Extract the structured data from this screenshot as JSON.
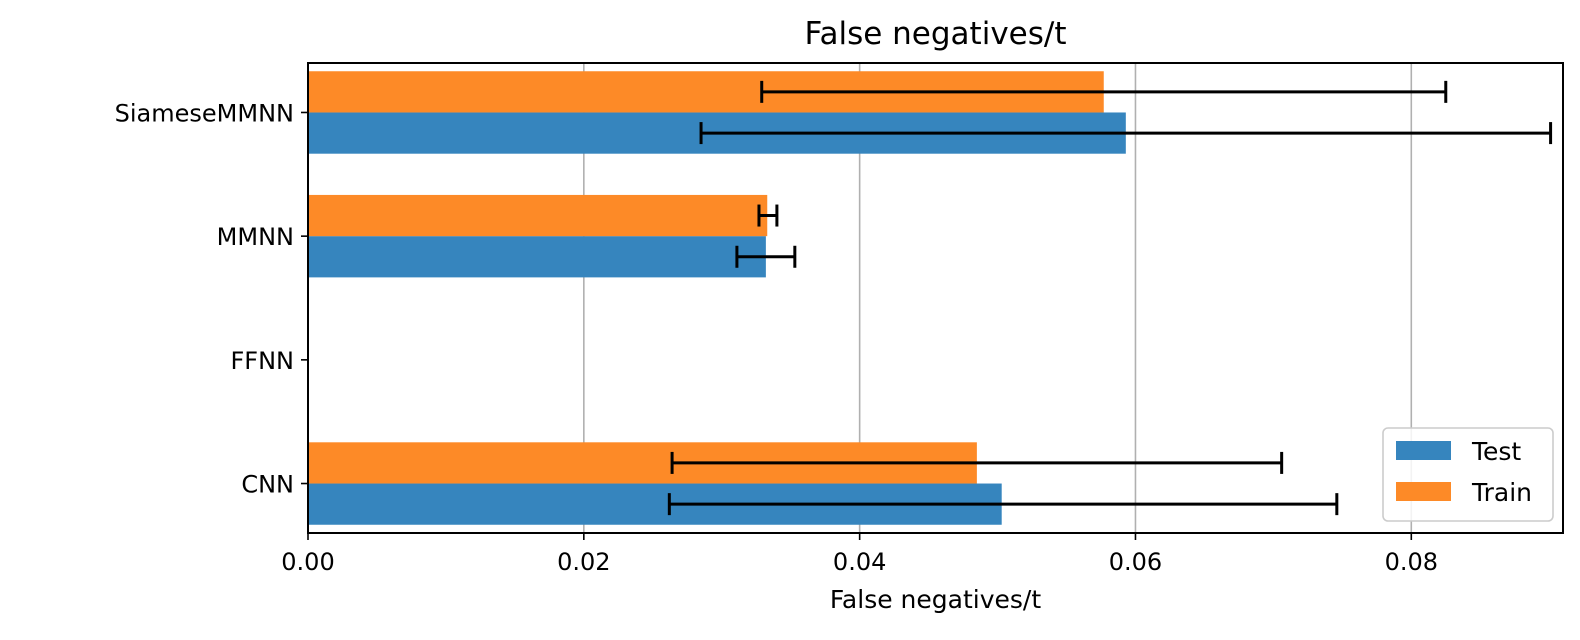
{
  "chart_data": {
    "type": "bar",
    "orientation": "horizontal",
    "title": "False negatives/t",
    "xlabel": "False negatives/t",
    "ylabel": "",
    "xlim": [
      0,
      0.091
    ],
    "x_ticks": [
      "0.00",
      "0.02",
      "0.04",
      "0.06",
      "0.08"
    ],
    "categories": [
      "CNN",
      "FFNN",
      "MMNN",
      "SiameseMMNN"
    ],
    "grid": "vertical",
    "legend_position": "lower-right",
    "series": [
      {
        "name": "Test",
        "color": "#3685be",
        "values": [
          0.0503,
          0,
          0.0332,
          0.0593
        ],
        "error_low": [
          0.0262,
          null,
          0.0311,
          0.0285
        ],
        "error_high": [
          0.0746,
          null,
          0.0353,
          0.0901
        ]
      },
      {
        "name": "Train",
        "color": "#fd8a27",
        "values": [
          0.0485,
          0,
          0.0333,
          0.0577
        ],
        "error_low": [
          0.0264,
          null,
          0.0327,
          0.0329
        ],
        "error_high": [
          0.0706,
          null,
          0.034,
          0.0825
        ]
      }
    ]
  }
}
